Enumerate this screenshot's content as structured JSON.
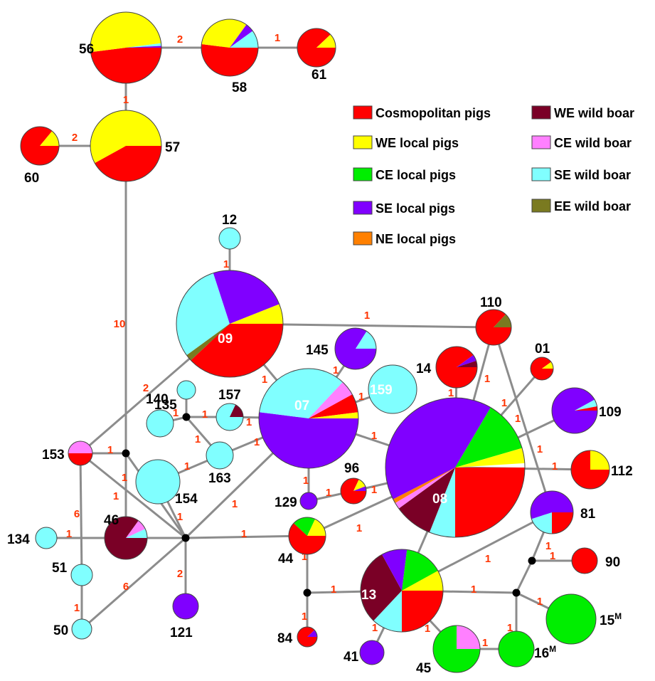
{
  "colors": {
    "cosmopolitan": "#ff0000",
    "we_local": "#ffff00",
    "ce_local": "#00ee00",
    "se_local": "#8000ff",
    "ne_local": "#ff8000",
    "we_boar": "#7a0026",
    "ce_boar": "#ff80ff",
    "se_boar": "#80ffff",
    "ee_boar": "#7a7a20",
    "edge": "#8c8c8c",
    "step_label": "#ff3300"
  },
  "legend": [
    {
      "key": "cosmopolitan",
      "label": "Cosmopolitan pigs"
    },
    {
      "key": "we_local",
      "label": "WE local pigs"
    },
    {
      "key": "ce_local",
      "label": "CE local pigs"
    },
    {
      "key": "se_local",
      "label": "SE local pigs"
    },
    {
      "key": "ne_local",
      "label": "NE local pigs"
    },
    {
      "key": "we_boar",
      "label": "WE wild boar"
    },
    {
      "key": "ce_boar",
      "label": "CE wild boar"
    },
    {
      "key": "se_boar",
      "label": "SE wild boar"
    },
    {
      "key": "ee_boar",
      "label": "EE wild boar"
    }
  ],
  "haplotypes": [
    {
      "id": "56",
      "label": "56",
      "composition": [
        {
          "group": "cosmopolitan",
          "share": 0.48
        },
        {
          "group": "we_local",
          "share": 0.5
        },
        {
          "group": "se_boar",
          "share": 0.012
        },
        {
          "group": "se_local",
          "share": 0.008
        }
      ]
    },
    {
      "id": "58",
      "label": "58",
      "composition": [
        {
          "group": "cosmopolitan",
          "share": 0.52
        },
        {
          "group": "we_local",
          "share": 0.33
        },
        {
          "group": "se_local",
          "share": 0.05
        },
        {
          "group": "se_boar",
          "share": 0.1
        }
      ]
    },
    {
      "id": "61",
      "label": "61",
      "composition": [
        {
          "group": "cosmopolitan",
          "share": 0.88
        },
        {
          "group": "we_local",
          "share": 0.12
        }
      ]
    },
    {
      "id": "57",
      "label": "57",
      "composition": [
        {
          "group": "cosmopolitan",
          "share": 0.42
        },
        {
          "group": "we_local",
          "share": 0.58
        }
      ]
    },
    {
      "id": "60",
      "label": "60",
      "composition": [
        {
          "group": "cosmopolitan",
          "share": 0.86
        },
        {
          "group": "we_local",
          "share": 0.14
        }
      ]
    },
    {
      "id": "12",
      "label": "12",
      "composition": [
        {
          "group": "se_boar",
          "share": 1
        }
      ]
    },
    {
      "id": "09",
      "label": "09",
      "composition": [
        {
          "group": "cosmopolitan",
          "share": 0.38
        },
        {
          "group": "ee_boar",
          "share": 0.02
        },
        {
          "group": "se_boar",
          "share": 0.3
        },
        {
          "group": "se_local",
          "share": 0.24
        },
        {
          "group": "we_local",
          "share": 0.06
        }
      ]
    },
    {
      "id": "110",
      "label": "110",
      "composition": [
        {
          "group": "cosmopolitan",
          "share": 0.87
        },
        {
          "group": "ee_boar",
          "share": 0.13
        }
      ]
    },
    {
      "id": "145",
      "label": "145",
      "composition": [
        {
          "group": "se_local",
          "share": 0.84
        },
        {
          "group": "se_boar",
          "share": 0.16
        }
      ]
    },
    {
      "id": "14",
      "label": "14",
      "composition": [
        {
          "group": "cosmopolitan",
          "share": 0.9
        },
        {
          "group": "se_local",
          "share": 0.05
        },
        {
          "group": "we_boar",
          "share": 0.05
        }
      ]
    },
    {
      "id": "01",
      "label": "01",
      "composition": [
        {
          "group": "cosmopolitan",
          "share": 0.9
        },
        {
          "group": "we_local",
          "share": 0.1
        }
      ]
    },
    {
      "id": "135",
      "label": "135",
      "composition": [
        {
          "group": "se_boar",
          "share": 1
        }
      ]
    },
    {
      "id": "157",
      "label": "157",
      "composition": [
        {
          "group": "se_boar",
          "share": 0.82
        },
        {
          "group": "we_boar",
          "share": 0.18
        }
      ]
    },
    {
      "id": "07",
      "label": "07",
      "composition": [
        {
          "group": "se_local",
          "share": 0.52
        },
        {
          "group": "se_boar",
          "share": 0.35
        },
        {
          "group": "ce_boar",
          "share": 0.05
        },
        {
          "group": "cosmopolitan",
          "share": 0.06
        },
        {
          "group": "we_local",
          "share": 0.02
        }
      ]
    },
    {
      "id": "159",
      "label": "159",
      "composition": [
        {
          "group": "se_boar",
          "share": 1
        }
      ]
    },
    {
      "id": "109",
      "label": "109",
      "composition": [
        {
          "group": "se_local",
          "share": 0.92
        },
        {
          "group": "se_boar",
          "share": 0.05
        },
        {
          "group": "cosmopolitan",
          "share": 0.03
        }
      ]
    },
    {
      "id": "140",
      "label": "140",
      "composition": [
        {
          "group": "se_boar",
          "share": 1
        }
      ]
    },
    {
      "id": "153",
      "label": "153",
      "composition": [
        {
          "group": "cosmopolitan",
          "share": 0.5
        },
        {
          "group": "ce_boar",
          "share": 0.5
        }
      ]
    },
    {
      "id": "163",
      "label": "163",
      "composition": [
        {
          "group": "se_boar",
          "share": 1
        }
      ]
    },
    {
      "id": "154",
      "label": "154",
      "composition": [
        {
          "group": "se_boar",
          "share": 1
        }
      ]
    },
    {
      "id": "08",
      "label": "08",
      "composition": [
        {
          "group": "cosmopolitan",
          "share": 0.25
        },
        {
          "group": "se_boar",
          "share": 0.06
        },
        {
          "group": "we_boar",
          "share": 0.09
        },
        {
          "group": "ce_boar",
          "share": 0.015
        },
        {
          "group": "ne_local",
          "share": 0.01
        },
        {
          "group": "se_local",
          "share": 0.41
        },
        {
          "group": "ce_local",
          "share": 0.12
        },
        {
          "group": "we_local",
          "share": 0.035
        }
      ]
    },
    {
      "id": "96",
      "label": "96",
      "composition": [
        {
          "group": "cosmopolitan",
          "share": 0.82
        },
        {
          "group": "we_local",
          "share": 0.12
        },
        {
          "group": "se_local",
          "share": 0.06
        }
      ]
    },
    {
      "id": "112",
      "label": "112",
      "composition": [
        {
          "group": "cosmopolitan",
          "share": 0.75
        },
        {
          "group": "we_local",
          "share": 0.25
        }
      ]
    },
    {
      "id": "129",
      "label": "129",
      "composition": [
        {
          "group": "se_local",
          "share": 1
        }
      ]
    },
    {
      "id": "81",
      "label": "81",
      "composition": [
        {
          "group": "cosmopolitan",
          "share": 0.25
        },
        {
          "group": "se_boar",
          "share": 0.2
        },
        {
          "group": "se_local",
          "share": 0.55
        }
      ]
    },
    {
      "id": "134",
      "label": "134",
      "composition": [
        {
          "group": "se_boar",
          "share": 1
        }
      ]
    },
    {
      "id": "46",
      "label": "46",
      "composition": [
        {
          "group": "we_boar",
          "share": 0.85
        },
        {
          "group": "ce_boar",
          "share": 0.08
        },
        {
          "group": "se_boar",
          "share": 0.07
        }
      ]
    },
    {
      "id": "44",
      "label": "44",
      "composition": [
        {
          "group": "cosmopolitan",
          "share": 0.62
        },
        {
          "group": "ce_local",
          "share": 0.2
        },
        {
          "group": "we_local",
          "share": 0.18
        }
      ]
    },
    {
      "id": "90",
      "label": "90",
      "composition": [
        {
          "group": "cosmopolitan",
          "share": 1
        }
      ]
    },
    {
      "id": "51",
      "label": "51",
      "composition": [
        {
          "group": "se_boar",
          "share": 1
        }
      ]
    },
    {
      "id": "13",
      "label": "13",
      "composition": [
        {
          "group": "cosmopolitan",
          "share": 0.25
        },
        {
          "group": "se_boar",
          "share": 0.12
        },
        {
          "group": "we_boar",
          "share": 0.3
        },
        {
          "group": "se_local",
          "share": 0.1
        },
        {
          "group": "ce_local",
          "share": 0.15
        },
        {
          "group": "we_local",
          "share": 0.08
        }
      ]
    },
    {
      "id": "121",
      "label": "121",
      "composition": [
        {
          "group": "se_local",
          "share": 1
        }
      ]
    },
    {
      "id": "15M",
      "label": "15",
      "sup": "M",
      "composition": [
        {
          "group": "ce_local",
          "share": 1
        }
      ]
    },
    {
      "id": "50",
      "label": "50",
      "composition": [
        {
          "group": "se_boar",
          "share": 1
        }
      ]
    },
    {
      "id": "84",
      "label": "84",
      "composition": [
        {
          "group": "cosmopolitan",
          "share": 0.88
        },
        {
          "group": "se_local",
          "share": 0.12
        }
      ]
    },
    {
      "id": "41",
      "label": "41",
      "composition": [
        {
          "group": "se_local",
          "share": 1
        }
      ]
    },
    {
      "id": "45",
      "label": "45",
      "composition": [
        {
          "group": "ce_local",
          "share": 0.75
        },
        {
          "group": "ce_boar",
          "share": 0.25
        }
      ]
    },
    {
      "id": "16M",
      "label": "16",
      "sup": "M",
      "composition": [
        {
          "group": "ce_local",
          "share": 1
        }
      ]
    }
  ],
  "links": [
    {
      "from": "56",
      "to": "58",
      "steps": "2"
    },
    {
      "from": "58",
      "to": "61",
      "steps": "1"
    },
    {
      "from": "56",
      "to": "57",
      "steps": "1"
    },
    {
      "from": "60",
      "to": "57",
      "steps": "2"
    },
    {
      "from": "57",
      "to": "mv_140",
      "steps": "10"
    },
    {
      "from": "12",
      "to": "09",
      "steps": "1"
    },
    {
      "from": "09",
      "to": "110",
      "steps": "1"
    },
    {
      "from": "09",
      "to": "153",
      "steps": "2"
    },
    {
      "from": "09",
      "to": "07",
      "steps": "1"
    },
    {
      "from": "07",
      "to": "145",
      "steps": "1"
    },
    {
      "from": "07",
      "to": "159",
      "steps": "1"
    },
    {
      "from": "07",
      "to": "157",
      "steps": "1"
    },
    {
      "from": "07",
      "to": "163",
      "steps": "1"
    },
    {
      "from": "07",
      "to": "08",
      "steps": "1"
    },
    {
      "from": "07",
      "to": "129",
      "steps": "1"
    },
    {
      "from": "07",
      "to": "mv_center",
      "steps": "1"
    },
    {
      "from": "mv_135",
      "to": "135",
      "steps": ""
    },
    {
      "from": "mv_135",
      "to": "157",
      "steps": "1"
    },
    {
      "from": "mv_135",
      "to": "163",
      "steps": "1"
    },
    {
      "from": "mv_135",
      "to": "140",
      "steps": "1"
    },
    {
      "from": "163",
      "to": "154",
      "steps": "1"
    },
    {
      "from": "153",
      "to": "mv_140",
      "steps": "1"
    },
    {
      "from": "153",
      "to": "51",
      "steps": "6"
    },
    {
      "from": "153",
      "to": "mv_center",
      "steps": "1"
    },
    {
      "from": "mv_140",
      "to": "46",
      "steps": ""
    },
    {
      "from": "mv_140",
      "to": "mv_center",
      "steps": "1"
    },
    {
      "from": "154",
      "to": "mv_center",
      "steps": "1"
    },
    {
      "from": "46",
      "to": "mv_center",
      "steps": ""
    },
    {
      "from": "134",
      "to": "46",
      "steps": "1"
    },
    {
      "from": "mv_center",
      "to": "121",
      "steps": "2"
    },
    {
      "from": "mv_center",
      "to": "50",
      "steps": "6"
    },
    {
      "from": "mv_center",
      "to": "44",
      "steps": "1"
    },
    {
      "from": "51",
      "to": "50",
      "steps": "1"
    },
    {
      "from": "129",
      "to": "96",
      "steps": "1"
    },
    {
      "from": "96",
      "to": "08",
      "steps": "1"
    },
    {
      "from": "44",
      "to": "08",
      "steps": "1"
    },
    {
      "from": "44",
      "to": "mv_44",
      "steps": "1"
    },
    {
      "from": "mv_44",
      "to": "84",
      "steps": "1"
    },
    {
      "from": "mv_44",
      "to": "13",
      "steps": "1"
    },
    {
      "from": "13",
      "to": "08",
      "steps": "1"
    },
    {
      "from": "13",
      "to": "41",
      "steps": "1"
    },
    {
      "from": "13",
      "to": "45",
      "steps": "1"
    },
    {
      "from": "13",
      "to": "81",
      "steps": "1"
    },
    {
      "from": "13",
      "to": "mv_16",
      "steps": "1"
    },
    {
      "from": "08",
      "to": "14",
      "steps": "1"
    },
    {
      "from": "08",
      "to": "110",
      "steps": "1"
    },
    {
      "from": "08",
      "to": "01",
      "steps": "1"
    },
    {
      "from": "08",
      "to": "109",
      "steps": "1"
    },
    {
      "from": "08",
      "to": "112",
      "steps": "1"
    },
    {
      "from": "110",
      "to": "81",
      "steps": "1"
    },
    {
      "from": "81",
      "to": "mv_90",
      "steps": ""
    },
    {
      "from": "mv_90",
      "to": "90",
      "steps": "1"
    },
    {
      "from": "mv_90",
      "to": "mv_16",
      "steps": "1"
    },
    {
      "from": "mv_16",
      "to": "15M",
      "steps": "1"
    },
    {
      "from": "mv_16",
      "to": "16M",
      "steps": "1"
    },
    {
      "from": "45",
      "to": "16M",
      "steps": "1"
    }
  ]
}
